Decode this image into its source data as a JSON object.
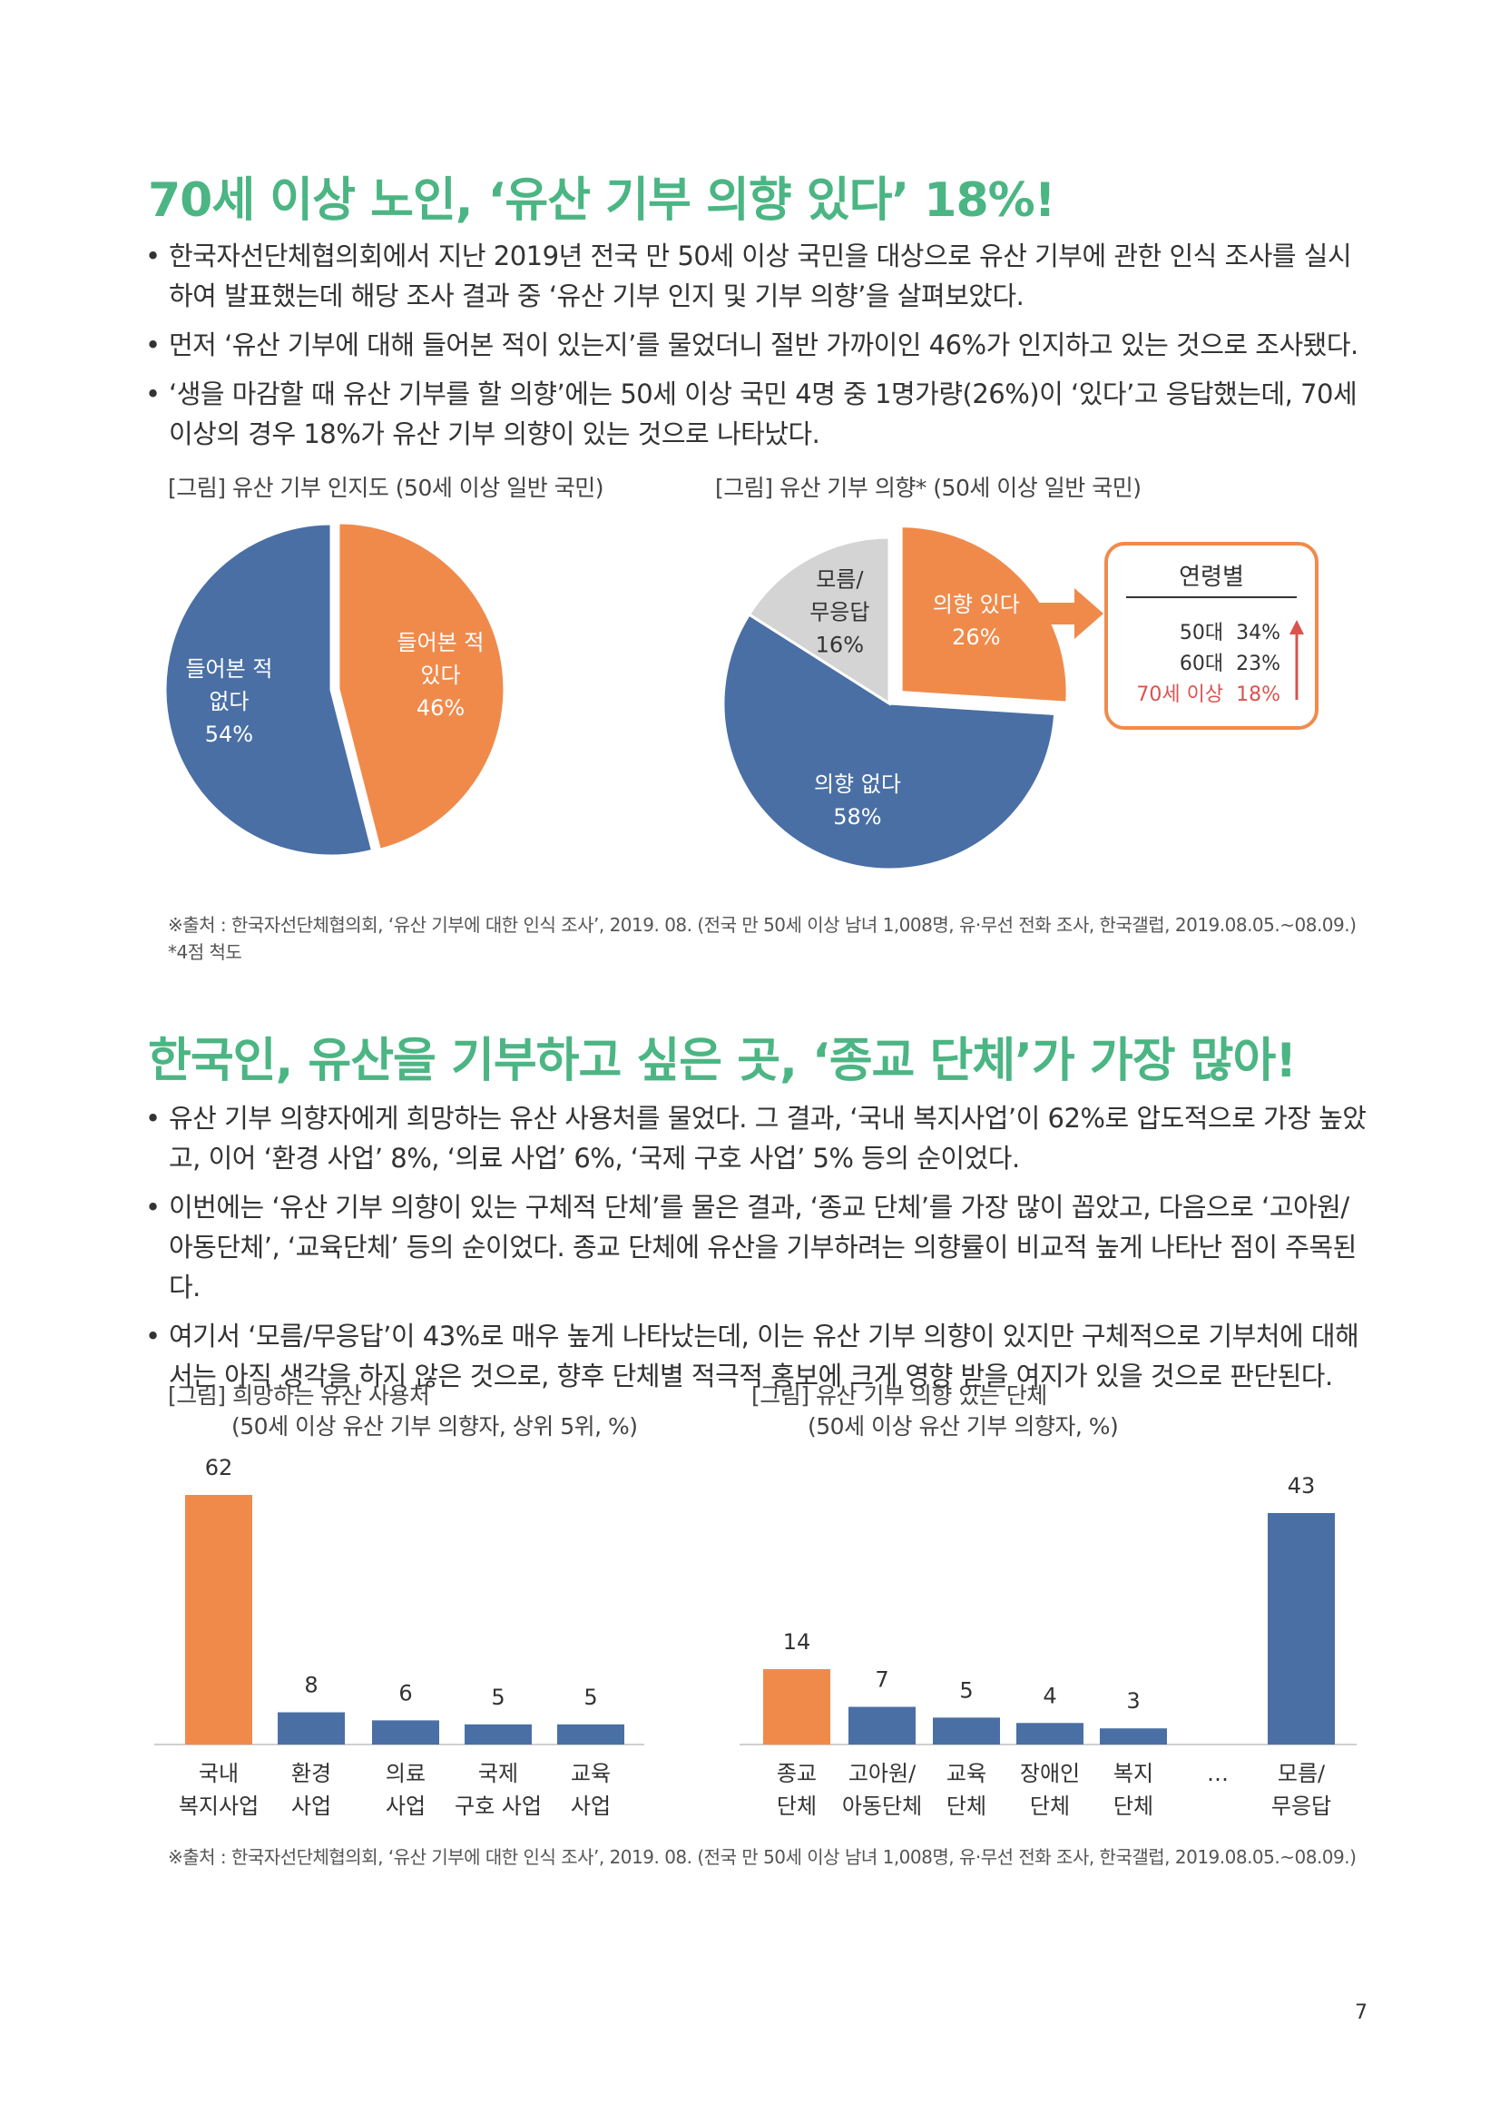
{
  "section1": {
    "heading": "70세 이상 노인, ‘유산 기부 의향 있다’ 18%!",
    "bullets": [
      "한국자선단체협의회에서 지난 2019년 전국 만 50세 이상 국민을 대상으로 유산 기부에 관한 인식 조사를 실시하여 발표했는데 해당 조사 결과 중 ‘유산 기부 인지 및 기부 의향’을 살펴보았다.",
      "먼저 ‘유산 기부에 대해 들어본 적이 있는지’를 물었더니 절반 가까이인 46%가 인지하고 있는 것으로 조사됐다.",
      "‘생을 마감할 때 유산 기부를 할 의향’에는 50세 이상 국민 4명 중 1명가량(26%)이 ‘있다’고 응답했는데, 70세 이상의 경우 18%가 유산 기부 의향이 있는 것으로 나타났다."
    ],
    "fig1_caption": "[그림] 유산 기부 인지도 (50세 이상 일반 국민)",
    "fig2_caption": "[그림] 유산 기부 의향* (50세 이상 일반 국민)",
    "age_box": {
      "title": "연령별",
      "rows": [
        {
          "label": "50대",
          "value": "34%",
          "highlight": false
        },
        {
          "label": "60대",
          "value": "23%",
          "highlight": false
        },
        {
          "label": "70세 이상",
          "value": "18%",
          "highlight": true
        }
      ]
    },
    "source": "※출처 : 한국자선단체협의회, ‘유산 기부에 대한 인식 조사’, 2019. 08. (전국 만 50세 이상 남녀 1,008명, 유·무선 전화 조사, 한국갤럽, 2019.08.05.~08.09.)",
    "footnote": "*4점 척도"
  },
  "section2": {
    "heading": "한국인, 유산을 기부하고 싶은 곳, ‘종교 단체’가 가장 많아!",
    "bullets": [
      "유산 기부 의향자에게 희망하는 유산 사용처를 물었다. 그 결과, ‘국내 복지사업’이 62%로 압도적으로 가장 높았고, 이어 ‘환경 사업’ 8%, ‘의료 사업’ 6%, ‘국제 구호 사업’ 5% 등의 순이었다.",
      "이번에는 ‘유산 기부 의향이 있는 구체적 단체’를 물은 결과, ‘종교 단체’를 가장 많이 꼽았고, 다음으로 ‘고아원/아동단체’, ‘교육단체’ 등의 순이었다. 종교 단체에 유산을 기부하려는 의향률이 비교적 높게 나타난 점이 주목된다.",
      "여기서 ‘모름/무응답’이 43%로 매우 높게 나타났는데, 이는 유산 기부 의향이 있지만 구체적으로 기부처에 대해서는 아직 생각을 하지 않은 것으로, 향후 단체별 적극적 홍보에 크게 영향 받을 여지가 있을 것으로 판단된다."
    ],
    "fig3_caption_1": "[그림] 희망하는 유산 사용처",
    "fig3_caption_2": "(50세 이상 유산 기부 의향자, 상위 5위, %)",
    "fig4_caption_1": "[그림] 유산 기부 의향 있는 단체",
    "fig4_caption_2": "(50세 이상 유산 기부 의향자, %)",
    "ellipsis": "…",
    "source": "※출처 : 한국자선단체협의회, ‘유산 기부에 대한 인식 조사’, 2019. 08. (전국 만 50세 이상 남녀 1,008명, 유·무선 전화 조사, 한국갤럽, 2019.08.05.~08.09.)"
  },
  "page_number": "7",
  "colors": {
    "orange": "#f08a4b",
    "blue": "#4a6fa5",
    "gray": "#d4d4d4",
    "green": "#4bb583",
    "red": "#d9534f"
  },
  "chart_data": [
    {
      "type": "pie",
      "slices": [
        {
          "label": [
            "들어본 적",
            "있다"
          ],
          "value": 46,
          "display": "46%",
          "color": "#f08a4b"
        },
        {
          "label": [
            "들어본 적",
            "없다"
          ],
          "value": 54,
          "display": "54%",
          "color": "#4a6fa5"
        }
      ]
    },
    {
      "type": "pie",
      "slices": [
        {
          "label": [
            "의향 있다"
          ],
          "value": 26,
          "display": "26%",
          "color": "#f08a4b"
        },
        {
          "label": [
            "의향 없다"
          ],
          "value": 58,
          "display": "58%",
          "color": "#4a6fa5"
        },
        {
          "label": [
            "모름/",
            "무응답"
          ],
          "value": 16,
          "display": "16%",
          "color": "#d4d4d4"
        }
      ]
    },
    {
      "type": "bar",
      "categories": [
        [
          "국내",
          "복지사업"
        ],
        [
          "환경",
          "사업"
        ],
        [
          "의료",
          "사업"
        ],
        [
          "국제",
          "구호 사업"
        ],
        [
          "교육",
          "사업"
        ]
      ],
      "values": [
        62,
        8,
        6,
        5,
        5
      ],
      "colors": [
        "#f08a4b",
        "#4a6fa5",
        "#4a6fa5",
        "#4a6fa5",
        "#4a6fa5"
      ],
      "ylim": [
        0,
        62
      ]
    },
    {
      "type": "bar",
      "categories": [
        [
          "종교",
          "단체"
        ],
        [
          "고아원/",
          "아동단체"
        ],
        [
          "교육",
          "단체"
        ],
        [
          "장애인",
          "단체"
        ],
        [
          "복지",
          "단체"
        ],
        [
          "모름/",
          "무응답"
        ]
      ],
      "values": [
        14,
        7,
        5,
        4,
        3,
        43
      ],
      "colors": [
        "#f08a4b",
        "#4a6fa5",
        "#4a6fa5",
        "#4a6fa5",
        "#4a6fa5",
        "#4a6fa5"
      ],
      "ylim": [
        0,
        43
      ]
    }
  ]
}
